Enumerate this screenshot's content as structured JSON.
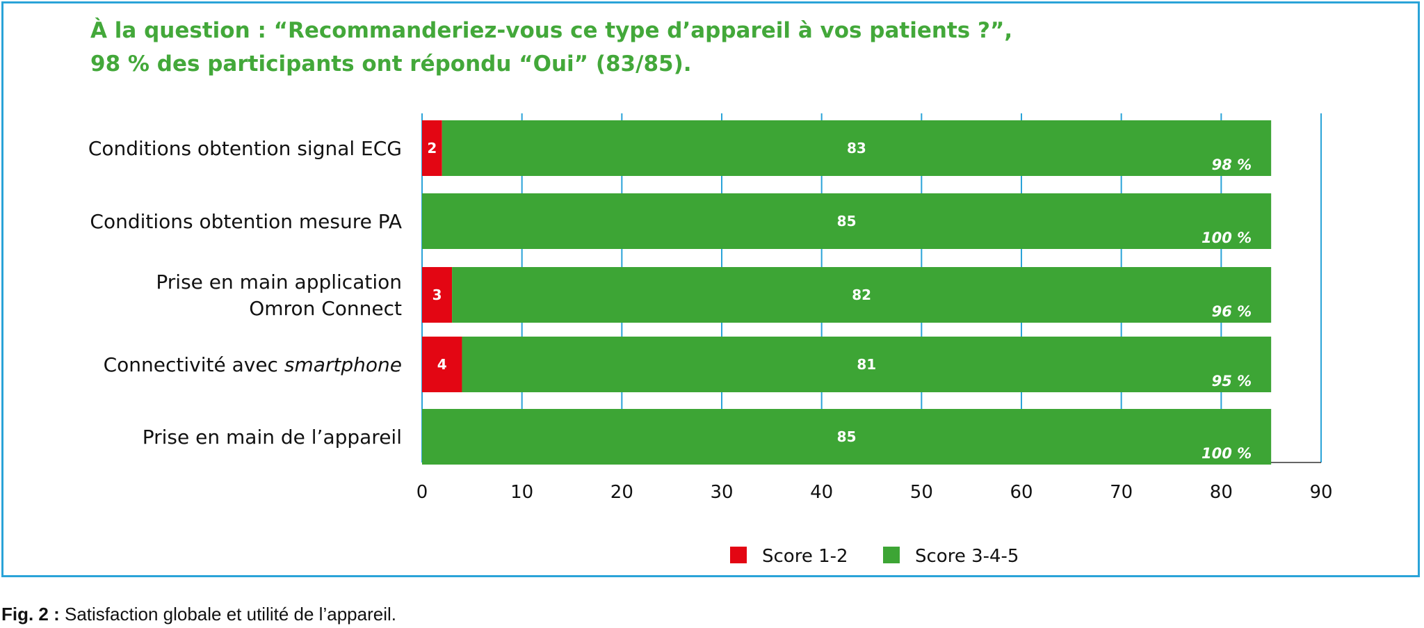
{
  "heading": {
    "line1": "À la question : “Recommanderiez-vous ce type d’appareil à vos patients ?”,",
    "line2": "98 % des participants ont répondu “Oui” (83/85)."
  },
  "caption": {
    "label": "Fig. 2 :",
    "text": " Satisfaction globale et utilité de l’appareil."
  },
  "colors": {
    "score12": "#e30613",
    "score345": "#3da535",
    "grid": "#2aa3d8",
    "frame": "#2aa3d8",
    "heading": "#43a83a"
  },
  "chart_data": {
    "type": "bar",
    "orientation": "horizontal",
    "stacked": true,
    "categories": [
      [
        "Conditions obtention signal ECG"
      ],
      [
        "Conditions obtention mesure PA"
      ],
      [
        "Prise en main application",
        "Omron Connect"
      ],
      [
        "Connectivité avec ",
        "smartphone"
      ],
      [
        "Prise en main de l’appareil"
      ]
    ],
    "series": [
      {
        "name": "Score 1-2",
        "values": [
          2,
          0,
          3,
          4,
          0
        ]
      },
      {
        "name": "Score 3-4-5",
        "values": [
          83,
          85,
          82,
          81,
          85
        ]
      }
    ],
    "percent_labels": [
      "98 %",
      "100 %",
      "96 %",
      "95 %",
      "100 %"
    ],
    "xlim": [
      0,
      90
    ],
    "xticks": [
      0,
      10,
      20,
      30,
      40,
      50,
      60,
      70,
      80,
      90
    ],
    "grid": true,
    "legend": "bottom"
  }
}
